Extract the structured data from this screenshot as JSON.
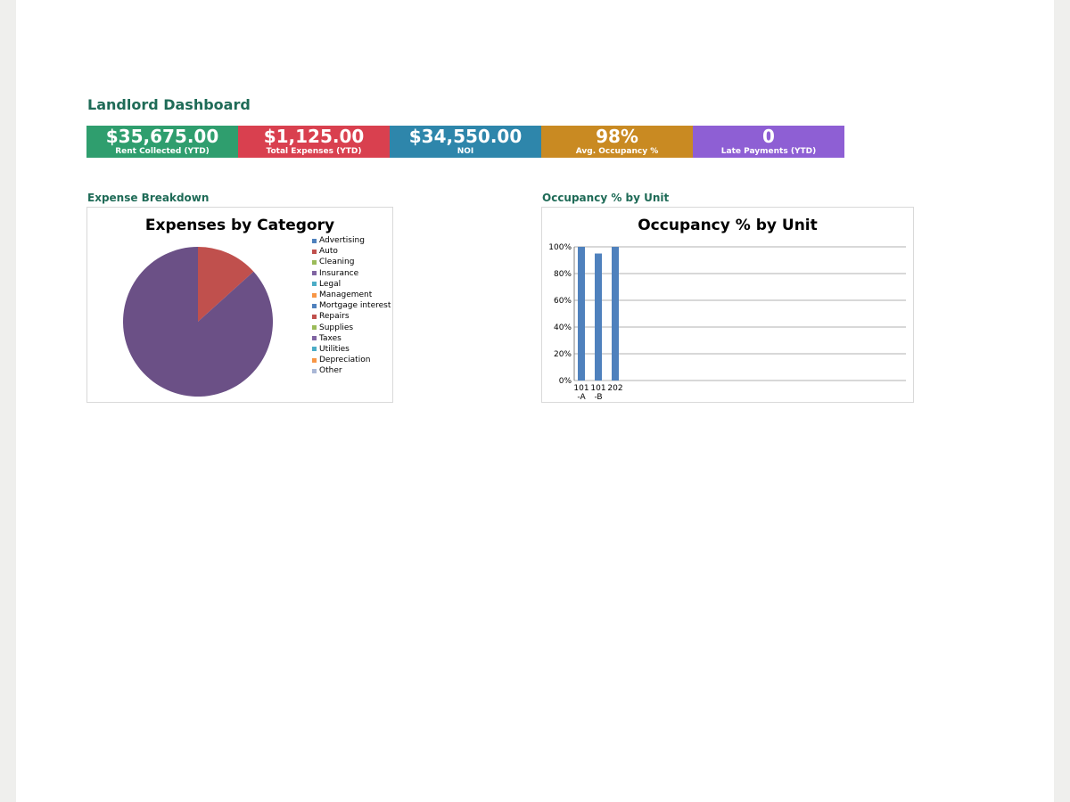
{
  "title": "Landlord Dashboard",
  "kpis": [
    {
      "value": "$35,675.00",
      "label": "Rent Collected (YTD)",
      "color": "#2f9e6e"
    },
    {
      "value": "$1,125.00",
      "label": "Total Expenses (YTD)",
      "color": "#d9404f"
    },
    {
      "value": "$34,550.00",
      "label": "NOI",
      "color": "#2e86ab"
    },
    {
      "value": "98%",
      "label": "Avg. Occupancy %",
      "color": "#c98a22"
    },
    {
      "value": "0",
      "label": "Late Payments (YTD)",
      "color": "#8e5fd4"
    }
  ],
  "sections": {
    "expense": "Expense Breakdown",
    "occupancy": "Occupancy % by Unit"
  },
  "chart_data": [
    {
      "type": "pie",
      "title": "Expenses by Category",
      "legend": "right",
      "categories": [
        "Advertising",
        "Auto",
        "Cleaning",
        "Insurance",
        "Legal",
        "Management",
        "Mortgage interest",
        "Repairs",
        "Supplies",
        "Taxes",
        "Utilities",
        "Depreciation",
        "Other"
      ],
      "colors": [
        "#4f81bd",
        "#c0504d",
        "#9bbb59",
        "#8064a2",
        "#4bacc6",
        "#f79646",
        "#4f81bd",
        "#c0504d",
        "#9bbb59",
        "#8064a2",
        "#4bacc6",
        "#f79646",
        "#a9b7d6"
      ],
      "values": [
        0,
        0,
        0,
        0,
        0,
        0,
        0,
        150,
        0,
        975,
        0,
        0,
        0
      ],
      "slice_colors": {
        "Repairs": "#c0504d",
        "Taxes": "#6b5086"
      }
    },
    {
      "type": "bar",
      "title": "Occupancy % by Unit",
      "categories": [
        "101-A",
        "101-B",
        "202"
      ],
      "tick_labels": [
        [
          "101",
          "-A"
        ],
        [
          "101",
          "-B"
        ],
        [
          "202",
          ""
        ]
      ],
      "values": [
        100,
        95,
        100
      ],
      "ylim": [
        0,
        100
      ],
      "yticks": [
        "0%",
        "20%",
        "40%",
        "60%",
        "80%",
        "100%"
      ],
      "grid": true,
      "bar_color": "#4f81bd"
    }
  ]
}
